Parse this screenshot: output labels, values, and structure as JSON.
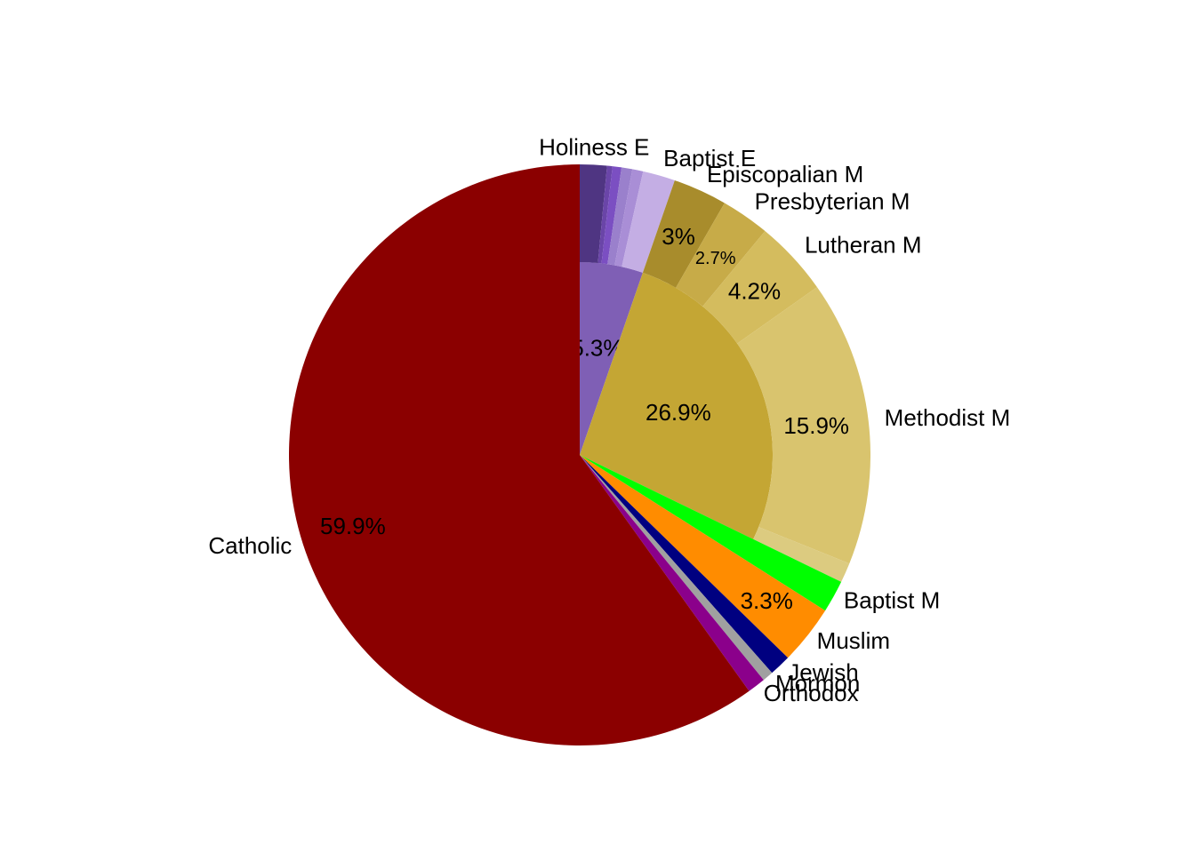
{
  "chart_data": {
    "type": "sunburst",
    "inner": {
      "values": [
        5.3,
        26.9
      ],
      "value_labels": [
        "5.3%",
        "26.9%"
      ],
      "colors": [
        "#7f5fb5",
        "#c4a634"
      ]
    },
    "outer": {
      "names": [
        "Holiness E",
        null,
        null,
        null,
        null,
        "Baptist E",
        "Episcopalian M",
        "Presbyterian M",
        "Lutheran M",
        "Methodist M",
        null
      ],
      "values": [
        1.5,
        0.3,
        0.5,
        0.6,
        0.6,
        1.8,
        3,
        2.7,
        4.2,
        15.9,
        1.1
      ],
      "value_labels": [
        null,
        null,
        null,
        null,
        null,
        null,
        "3%",
        "2.7%",
        "4.2%",
        "15.9%",
        null
      ],
      "colors": [
        "#4f3582",
        "#6a45a8",
        "#7b4fc2",
        "#9a80cc",
        "#a98ed6",
        "#c4aee4",
        "#a88c2c",
        "#c7ab48",
        "#d4bc5e",
        "#d9c46e",
        "#dccb80"
      ]
    },
    "full": {
      "names": [
        "Baptist M",
        "Muslim",
        "Jewish",
        "Mormon",
        "Orthodox",
        "Catholic"
      ],
      "values": [
        1.8,
        3.3,
        1.2,
        0.6,
        1.0,
        59.9
      ],
      "value_labels": [
        null,
        "3.3%",
        null,
        null,
        null,
        "59.9%"
      ],
      "colors": [
        "#00ff00",
        "#ff8c00",
        "#000080",
        "#a0a0a0",
        "#8b008b",
        "#8b0000"
      ]
    }
  }
}
